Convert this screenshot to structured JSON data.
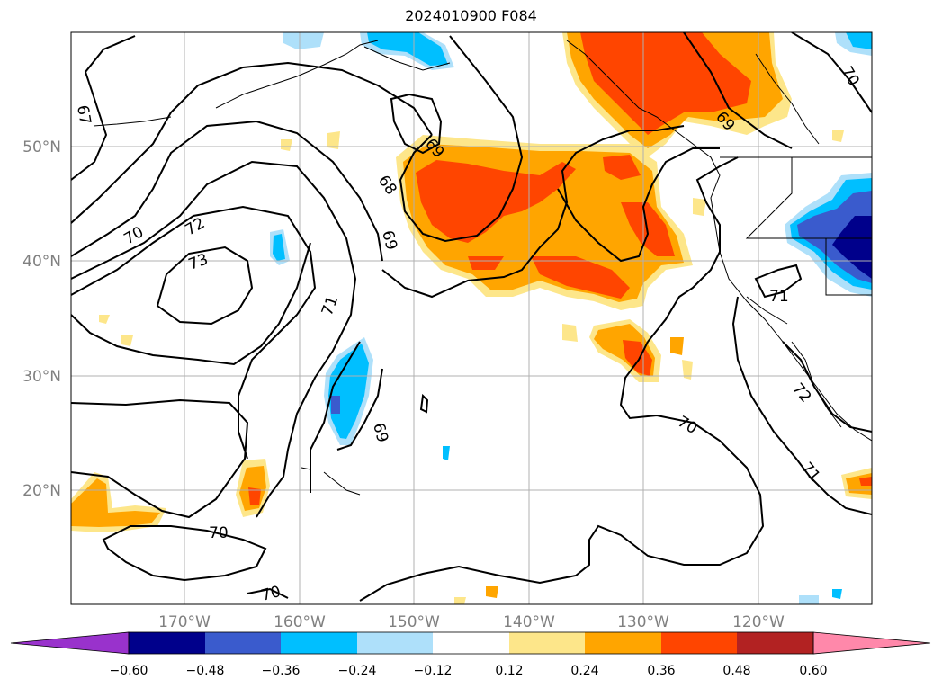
{
  "title": "2024010900 F084",
  "colors": {
    "neg_060": "#9932cc",
    "neg_048": "#00008b",
    "neg_036": "#3a5bcd",
    "neg_024": "#00bfff",
    "neg_012": "#aee0fa",
    "zero": "#ffffff",
    "pos_012": "#fde68a",
    "pos_024": "#ffa500",
    "pos_036": "#ff4500",
    "pos_048": "#b22222",
    "pos_060": "#ff88aa"
  },
  "map": {
    "lat_labels": [
      "50°N",
      "40°N",
      "30°N",
      "20°N"
    ],
    "lon_labels": [
      "170°W",
      "160°W",
      "150°W",
      "140°W",
      "130°W",
      "120°W"
    ],
    "contour_labels": [
      "67",
      "68",
      "69",
      "70",
      "71",
      "72",
      "73",
      "70",
      "70",
      "71",
      "72",
      "69",
      "70",
      "71",
      "69",
      "69",
      "70"
    ]
  },
  "colorbar": {
    "tick_labels": [
      "−0.60",
      "−0.48",
      "−0.36",
      "−0.24",
      "−0.12",
      "0.12",
      "0.24",
      "0.36",
      "0.48",
      "0.60"
    ]
  }
}
